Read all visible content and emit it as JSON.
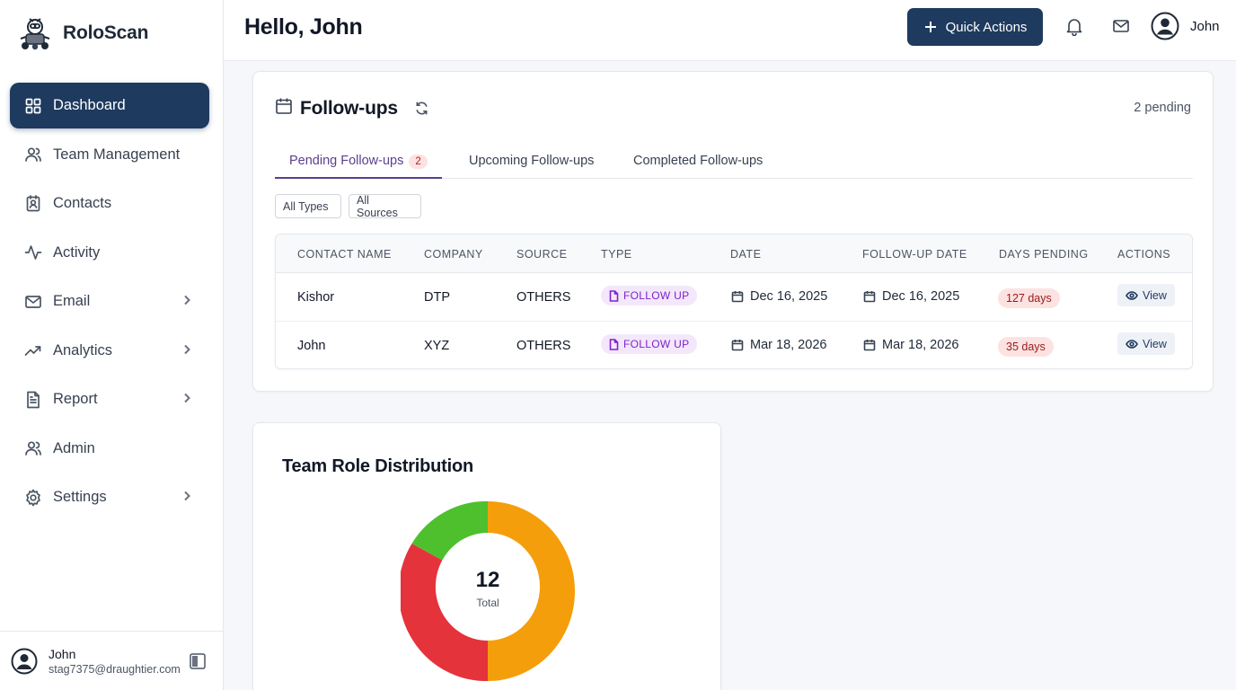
{
  "brand": {
    "name": "RoloScan"
  },
  "sidebar": {
    "items": [
      {
        "label": "Dashboard",
        "icon": "dashboard-grid-icon",
        "active": true,
        "chevron": false
      },
      {
        "label": "Team Management",
        "icon": "users-icon",
        "active": false,
        "chevron": false
      },
      {
        "label": "Contacts",
        "icon": "contact-book-icon",
        "active": false,
        "chevron": false
      },
      {
        "label": "Activity",
        "icon": "activity-pulse-icon",
        "active": false,
        "chevron": false
      },
      {
        "label": "Email",
        "icon": "mail-icon",
        "active": false,
        "chevron": true
      },
      {
        "label": "Analytics",
        "icon": "trend-up-icon",
        "active": false,
        "chevron": true
      },
      {
        "label": "Report",
        "icon": "document-icon",
        "active": false,
        "chevron": true
      },
      {
        "label": "Admin",
        "icon": "admin-users-icon",
        "active": false,
        "chevron": false
      },
      {
        "label": "Settings",
        "icon": "gear-icon",
        "active": false,
        "chevron": true
      }
    ],
    "footer": {
      "name": "John",
      "email": "stag7375@draughtier.com"
    }
  },
  "header": {
    "greeting": "Hello, John",
    "quick_actions_label": "Quick Actions",
    "user_name": "John"
  },
  "followups": {
    "title": "Follow-ups",
    "pending_text": "2 pending",
    "tabs": [
      {
        "label": "Pending Follow-ups",
        "badge": "2",
        "active": true
      },
      {
        "label": "Upcoming Follow-ups",
        "active": false
      },
      {
        "label": "Completed Follow-ups",
        "active": false
      }
    ],
    "filters": {
      "types": "All Types",
      "sources": "All Sources"
    },
    "columns": [
      "CONTACT NAME",
      "COMPANY",
      "SOURCE",
      "TYPE",
      "DATE",
      "FOLLOW-UP DATE",
      "DAYS PENDING",
      "ACTIONS"
    ],
    "rows": [
      {
        "name": "Kishor",
        "company": "DTP",
        "source": "OTHERS",
        "type": "FOLLOW UP",
        "date": "Dec 16, 2025",
        "followup_date": "Dec 16, 2025",
        "days": "127 days",
        "action": "View"
      },
      {
        "name": "John",
        "company": "XYZ",
        "source": "OTHERS",
        "type": "FOLLOW UP",
        "date": "Mar 18, 2026",
        "followup_date": "Mar 18, 2026",
        "days": "35 days",
        "action": "View"
      }
    ]
  },
  "team_roles": {
    "title": "Team Role Distribution",
    "total_value": "12",
    "total_label": "Total",
    "colors": {
      "orange": "#f59e0b",
      "red": "#e5333b",
      "green": "#4ec02e"
    }
  },
  "colors": {
    "accent": "#1e3a5f",
    "tab_active": "#5b3f8c"
  }
}
